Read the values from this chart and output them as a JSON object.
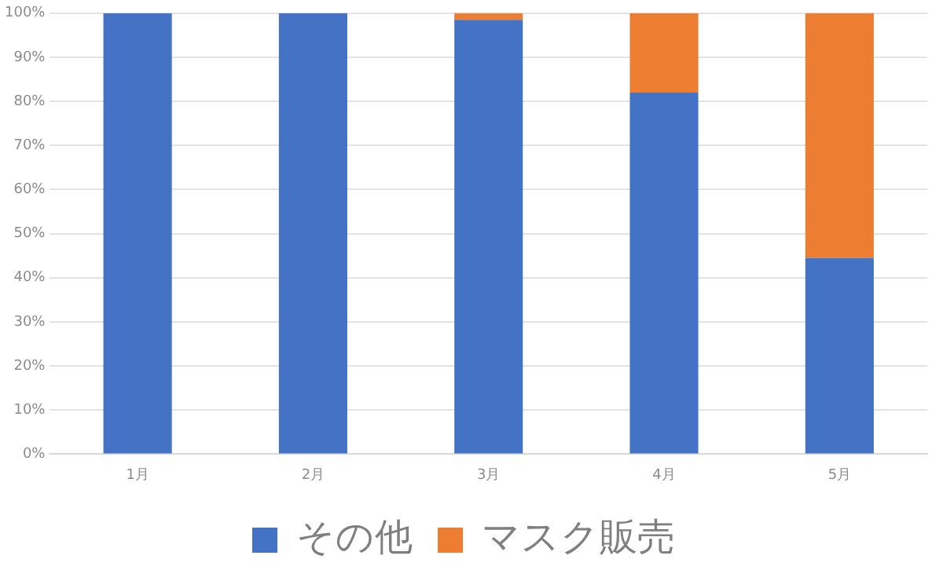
{
  "chart_data": {
    "type": "bar",
    "stacked": true,
    "categories": [
      "1月",
      "2月",
      "3月",
      "4月",
      "5月"
    ],
    "series": [
      {
        "name": "その他",
        "color": "#4472c4",
        "values": [
          100,
          100,
          98.5,
          82,
          44.5
        ]
      },
      {
        "name": "マスク販売",
        "color": "#ed7d31",
        "values": [
          0,
          0,
          1.5,
          18,
          55.5
        ]
      }
    ],
    "ylim": [
      0,
      100
    ],
    "yticks": [
      {
        "value": 0,
        "label": "0%"
      },
      {
        "value": 10,
        "label": "10%"
      },
      {
        "value": 20,
        "label": "20%"
      },
      {
        "value": 30,
        "label": "30%"
      },
      {
        "value": 40,
        "label": "40%"
      },
      {
        "value": 50,
        "label": "50%"
      },
      {
        "value": 60,
        "label": "60%"
      },
      {
        "value": 70,
        "label": "70%"
      },
      {
        "value": 80,
        "label": "80%"
      },
      {
        "value": 90,
        "label": "90%"
      },
      {
        "value": 100,
        "label": "100%"
      }
    ],
    "grid": "y",
    "legend": "bottom"
  }
}
